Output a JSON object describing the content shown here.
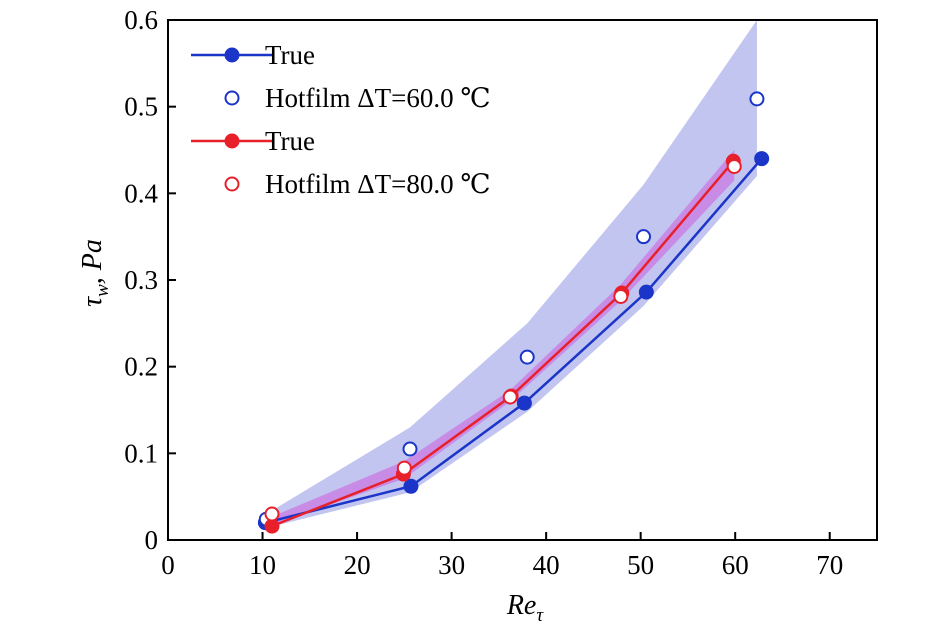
{
  "chart_data": {
    "type": "line",
    "xlabel": "Re_τ",
    "ylabel": "τ_w, Pa",
    "xlim": [
      0,
      75
    ],
    "ylim": [
      0,
      0.6
    ],
    "xticks": [
      0,
      10,
      20,
      30,
      40,
      50,
      60,
      70
    ],
    "yticks": [
      0,
      0.1,
      0.2,
      0.3,
      0.4,
      0.5,
      0.6
    ],
    "ytick_labels": [
      "0",
      "0.1",
      "0.2",
      "0.3",
      "0.4",
      "0.5",
      "0.6"
    ],
    "grid": false,
    "legend_position": "top-left",
    "series": [
      {
        "name": "True",
        "kind": "line-filled-marker",
        "color": "#1a35c8",
        "x": [
          10.3,
          25.7,
          37.7,
          50.6,
          62.8
        ],
        "y": [
          0.02,
          0.062,
          0.158,
          0.286,
          0.44
        ]
      },
      {
        "name": "Hotfilm ΔT=60.0 ℃",
        "kind": "open-marker",
        "color": "#1a35c8",
        "x": [
          10.4,
          25.6,
          38.0,
          50.3,
          62.3
        ],
        "y": [
          0.024,
          0.105,
          0.211,
          0.35,
          0.509
        ],
        "band_color": "#8f95e4",
        "band_lower": [
          0.014,
          0.055,
          0.148,
          0.27,
          0.42
        ],
        "band_upper": [
          0.03,
          0.13,
          0.25,
          0.41,
          0.6
        ]
      },
      {
        "name": "True",
        "kind": "line-filled-marker",
        "color": "#e8202a",
        "x": [
          11.0,
          24.9,
          36.3,
          48.0,
          59.8
        ],
        "y": [
          0.016,
          0.076,
          0.166,
          0.285,
          0.437
        ]
      },
      {
        "name": "Hotfilm ΔT=80.0 ℃",
        "kind": "open-marker",
        "color": "#e8202a",
        "x": [
          11.0,
          25.0,
          36.2,
          47.9,
          59.9
        ],
        "y": [
          0.03,
          0.083,
          0.165,
          0.281,
          0.431
        ],
        "band_color": "#cc66e0",
        "band_lower": [
          0.017,
          0.071,
          0.16,
          0.276,
          0.415
        ],
        "band_upper": [
          0.027,
          0.091,
          0.173,
          0.295,
          0.45
        ]
      }
    ]
  }
}
